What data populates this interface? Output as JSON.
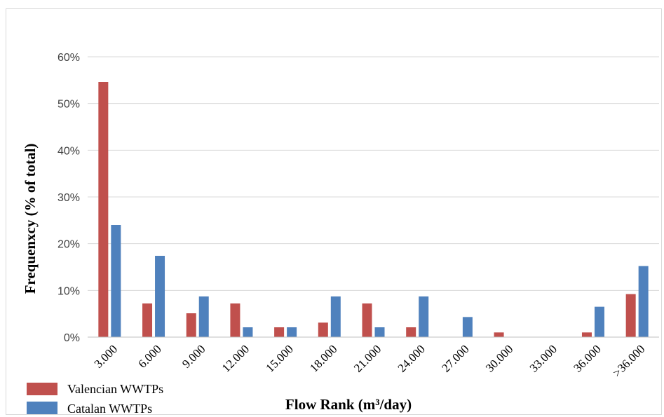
{
  "chart_data": {
    "type": "bar",
    "categories": [
      "3.000",
      "6.000",
      "9.000",
      "12.000",
      "15.000",
      "18.000",
      "21.000",
      "24.000",
      "27.000",
      "30.000",
      "33.000",
      "36.000",
      ">36.000"
    ],
    "series": [
      {
        "name": "Valencian  WWTPs",
        "color": "#c0504d",
        "values": [
          54.6,
          7.2,
          5.1,
          7.2,
          2.1,
          3.1,
          7.2,
          2.1,
          0,
          1.0,
          0,
          1.0,
          9.2
        ]
      },
      {
        "name": "Catalan  WWTPs",
        "color": "#4f81bd",
        "values": [
          24.0,
          17.4,
          8.7,
          2.1,
          2.1,
          8.7,
          2.1,
          8.7,
          4.3,
          0,
          0,
          6.5,
          15.2
        ]
      }
    ],
    "yticks": [
      "0%",
      "10%",
      "20%",
      "30%",
      "40%",
      "50%",
      "60%"
    ],
    "ylim": [
      0,
      60
    ],
    "ylabel": "Frequenxcy (% of total)",
    "xlabel": "Flow Rank  (m³/day)",
    "grid": true,
    "legend_position": "bottom-left"
  }
}
